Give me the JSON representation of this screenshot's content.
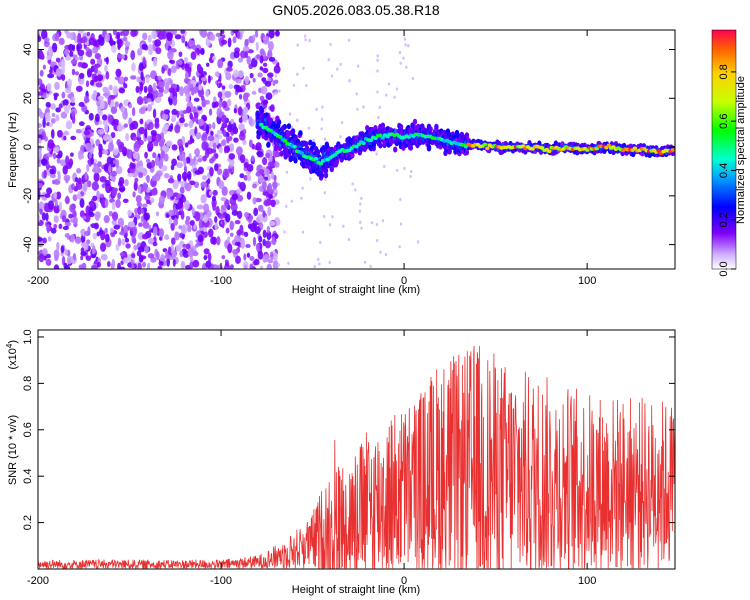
{
  "title": "GN05.2026.083.05.38.R18",
  "colors": {
    "snr_line": "#e83030",
    "axis": "#000000",
    "background": "#ffffff"
  },
  "chart_data": [
    {
      "type": "heatmap",
      "name": "spectrogram",
      "xlabel": "Height of straight line (km)",
      "ylabel": "Frequency (Hz)",
      "xlim": [
        -200,
        148
      ],
      "ylim": [
        -50,
        48
      ],
      "xticks": [
        -200,
        -100,
        0,
        100
      ],
      "xtick_labels": [
        "-200",
        "-100",
        "0",
        "100"
      ],
      "yticks": [
        -40,
        -20,
        0,
        20,
        40
      ],
      "ytick_labels": [
        "-40",
        "-20",
        "0",
        "20",
        "40"
      ],
      "colorbar": {
        "label": "Normalized spectral amplitude",
        "range": [
          0,
          0.97
        ],
        "ticks": [
          0.0,
          0.2,
          0.4,
          0.6,
          0.8
        ],
        "tick_labels": [
          "0.0",
          "0.2",
          "0.4",
          "0.6",
          "0.8"
        ]
      },
      "noise_region_km": [
        -200,
        -72
      ],
      "signal_center_track": {
        "height_km": [
          -80,
          -75,
          -70,
          -60,
          -55,
          -50,
          -45,
          -40,
          -35,
          -30,
          -20,
          -10,
          0,
          10,
          20,
          30,
          40,
          50,
          60,
          70,
          80,
          90,
          100,
          110,
          120,
          130,
          140,
          148
        ],
        "frequency_hz": [
          10,
          8,
          5,
          0,
          -3,
          -5,
          -6,
          -4,
          -2,
          -1,
          3,
          5,
          4,
          5,
          3,
          1,
          1,
          0,
          0,
          0,
          -1,
          0,
          -1,
          0,
          -1,
          -1,
          -2,
          -1
        ]
      }
    },
    {
      "type": "line",
      "name": "snr",
      "xlabel": "Height of straight line (km)",
      "ylabel": "SNR (10 * v/v)",
      "multiplier_label": "(x10",
      "multiplier_exponent": "4",
      "multiplier_close": ")",
      "xlim": [
        -200,
        148
      ],
      "ylim": [
        0,
        1.03
      ],
      "xticks": [
        -200,
        -100,
        0,
        100
      ],
      "xtick_labels": [
        "-200",
        "-100",
        "0",
        "100"
      ],
      "yticks": [
        0.2,
        0.4,
        0.6,
        0.8,
        1.0
      ],
      "ytick_labels": [
        "0.2",
        "0.4",
        "0.6",
        "0.8",
        "1.0"
      ],
      "envelope": {
        "height_km": [
          -200,
          -100,
          -80,
          -70,
          -60,
          -50,
          -40,
          -30,
          -20,
          -10,
          0,
          10,
          20,
          30,
          40,
          60,
          80,
          100,
          120,
          148
        ],
        "mean_snr": [
          0.02,
          0.02,
          0.03,
          0.05,
          0.08,
          0.12,
          0.16,
          0.22,
          0.26,
          0.3,
          0.34,
          0.36,
          0.4,
          0.42,
          0.42,
          0.4,
          0.38,
          0.36,
          0.36,
          0.36
        ],
        "max_snr": [
          0.03,
          0.03,
          0.04,
          0.08,
          0.12,
          0.2,
          0.62,
          0.45,
          0.6,
          0.62,
          0.58,
          0.7,
          0.95,
          0.85,
          1.03,
          0.78,
          0.75,
          0.65,
          0.6,
          0.55
        ]
      }
    }
  ]
}
